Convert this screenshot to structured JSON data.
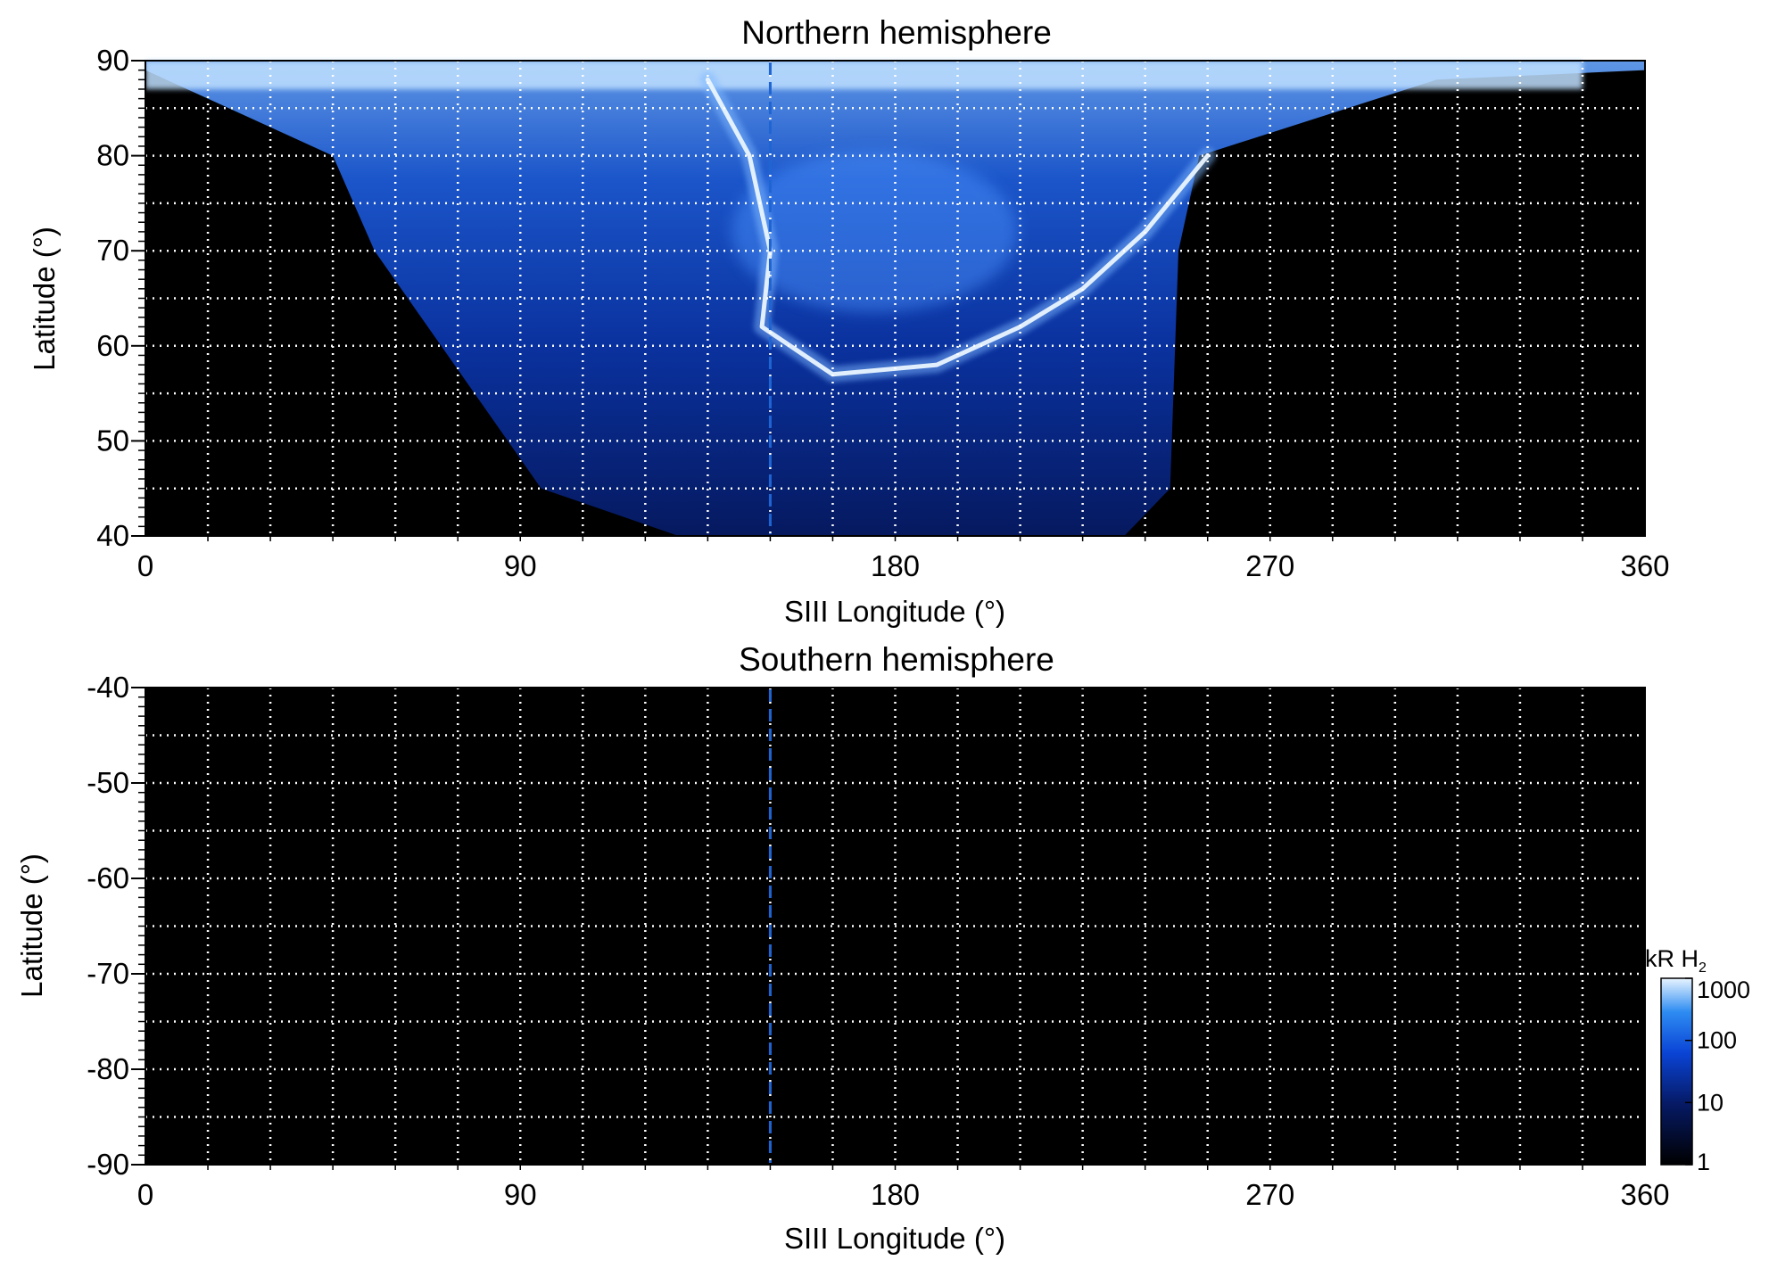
{
  "chart_data": [
    {
      "type": "heatmap",
      "title": "Northern hemisphere",
      "xlabel": "SIII Longitude (°)",
      "ylabel": "Latitude (°)",
      "xlim": [
        0,
        360
      ],
      "ylim": [
        40,
        90
      ],
      "xticks": [
        "0",
        "90",
        "180",
        "270",
        "360"
      ],
      "yticks": [
        "40",
        "50",
        "60",
        "70",
        "80",
        "90"
      ],
      "grid": true,
      "reference_longitude": 150,
      "emission_region": {
        "description_free": true,
        "lon_range_at_lat_40": [
          128,
          235
        ],
        "lon_range_at_lat_45": [
          95,
          246
        ],
        "lon_range_at_lat_70": [
          55,
          248
        ],
        "lon_range_at_lat_80": [
          45,
          253
        ],
        "lon_range_at_lat_88": [
          5,
          310
        ],
        "main_oval_points": [
          [
            135,
            88
          ],
          [
            145,
            80
          ],
          [
            150,
            70
          ],
          [
            148,
            62
          ],
          [
            165,
            57
          ],
          [
            190,
            58
          ],
          [
            210,
            62
          ],
          [
            225,
            66
          ],
          [
            240,
            72
          ],
          [
            255,
            80
          ]
        ]
      }
    },
    {
      "type": "heatmap",
      "title": "Southern hemisphere",
      "xlabel": "SIII Longitude (°)",
      "ylabel": "Latitude (°)",
      "xlim": [
        0,
        360
      ],
      "ylim": [
        -90,
        -40
      ],
      "xticks": [
        "0",
        "90",
        "180",
        "270",
        "360"
      ],
      "yticks": [
        "-40",
        "-50",
        "-60",
        "-70",
        "-80",
        "-90"
      ],
      "grid": true,
      "reference_longitude": 150
    }
  ],
  "colorbar": {
    "title_main": "kR H",
    "title_sub": "2",
    "scale": "log",
    "range": [
      1,
      1000
    ],
    "ticks": [
      "1",
      "10",
      "100",
      "1000"
    ],
    "colors": [
      "#000000",
      "#061a66",
      "#0a44d6",
      "#2e8cf2",
      "#d9eeff"
    ]
  },
  "colors": {
    "background": "#000000",
    "grid": "#ffffff",
    "reference_line": "#1e64d2"
  }
}
